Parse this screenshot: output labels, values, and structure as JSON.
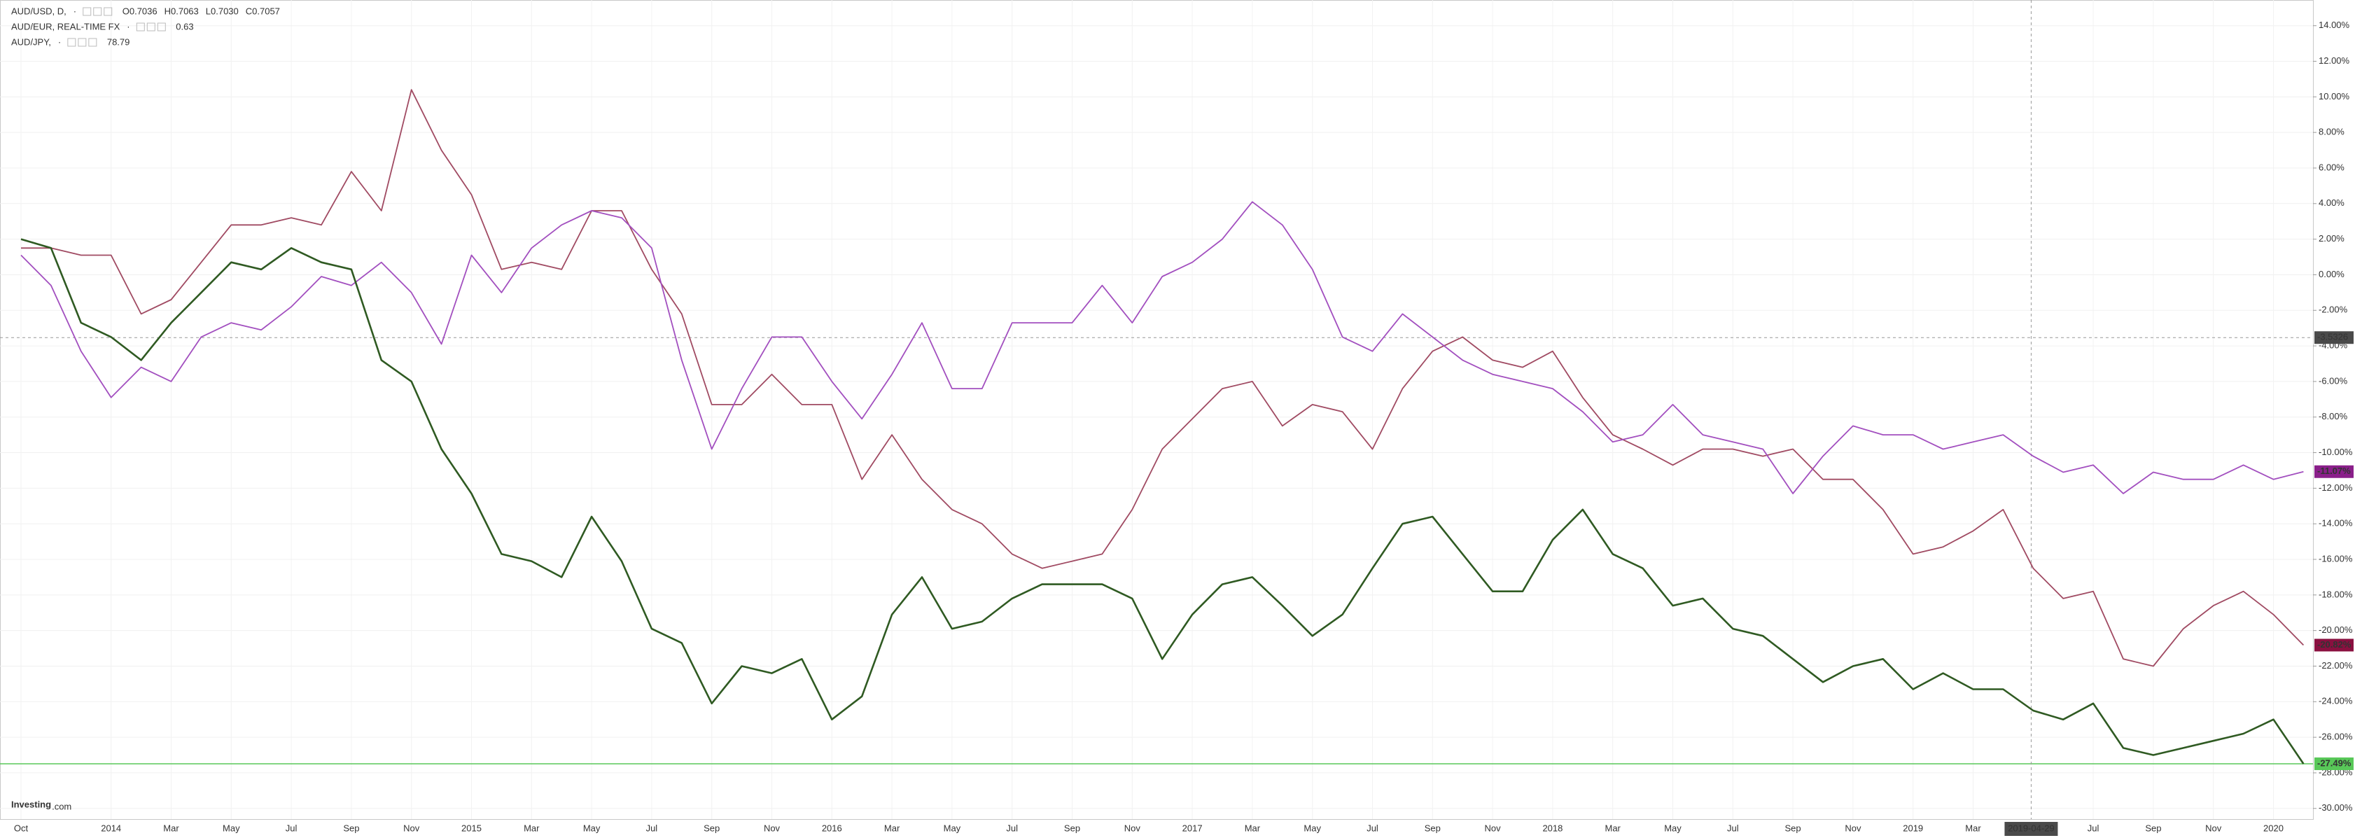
{
  "chart_data": {
    "type": "line",
    "legend": [
      {
        "name": "AUD/USD, D,",
        "detail": [
          "O0.7036",
          "H0.7063",
          "L0.7030",
          "C0.7057"
        ]
      },
      {
        "name": "AUD/EUR, REAL-TIME FX",
        "detail": [
          0.63
        ]
      },
      {
        "name": "AUD/JPY,",
        "detail": [
          78.79
        ]
      }
    ],
    "logo": {
      "main": "Investing",
      "suffix": ".com"
    },
    "categories": [
      "Oct",
      null,
      null,
      "2014",
      null,
      "Mar",
      null,
      "May",
      null,
      "Jul",
      null,
      "Sep",
      null,
      "Nov",
      null,
      "2015",
      null,
      "Mar",
      null,
      "May",
      null,
      "Jul",
      null,
      "Sep",
      null,
      "Nov",
      null,
      "2016",
      null,
      "Mar",
      null,
      "May",
      null,
      "Jul",
      null,
      "Sep",
      null,
      "Nov",
      null,
      "2017",
      null,
      "Mar",
      null,
      "May",
      null,
      "Jul",
      null,
      "Sep",
      null,
      "Nov",
      null,
      "2018",
      null,
      "Mar",
      null,
      "May",
      null,
      "Jul",
      null,
      "Sep",
      null,
      "Nov",
      null,
      "2019",
      null,
      "Mar",
      null,
      null,
      null,
      "Jul",
      null,
      "Sep",
      null,
      "Nov",
      null,
      "2020",
      null
    ],
    "series": [
      {
        "name": "AUD/USD",
        "color": "#2f5a22",
        "price_line_color": "#58c858",
        "last_label": "-27.49%",
        "values": [
          2,
          1.5,
          -2.7,
          -3.5,
          -4.8,
          -2.7,
          -1,
          0.7,
          0.3,
          1.5,
          0.7,
          0.3,
          -4.8,
          -6,
          -9.8,
          -12.3,
          -15.7,
          -16.1,
          -17,
          -13.6,
          -16.1,
          -19.9,
          -20.7,
          -24.1,
          -22,
          -22.4,
          -21.6,
          -25,
          -23.7,
          -19.1,
          -17,
          -19.9,
          -19.5,
          -18.2,
          -17.4,
          -17.4,
          -17.4,
          -18.2,
          -21.6,
          -19.1,
          -17.4,
          -17,
          -18.6,
          -20.3,
          -19.1,
          -16.5,
          -14,
          -13.6,
          -15.7,
          -17.8,
          -17.8,
          -14.9,
          -13.2,
          -15.7,
          -16.5,
          -18.6,
          -18.2,
          -19.9,
          -20.3,
          -21.6,
          -22.9,
          -22,
          -21.6,
          -23.3,
          -22.4,
          -23.3,
          -23.3,
          -24.5,
          -25,
          -24.1,
          -26.6,
          -27,
          -26.6,
          -26.2,
          -25.8,
          -25,
          -27.49
        ]
      },
      {
        "name": "AUD/EUR",
        "color": "#a24fbf",
        "label_color": "#8a1f8a",
        "last_label": "-11.07%",
        "values": [
          1.1,
          -0.6,
          -4.3,
          -6.9,
          -5.2,
          -6,
          -3.5,
          -2.7,
          -3.1,
          -1.8,
          -0.1,
          -0.6,
          0.7,
          -1,
          -3.9,
          1.1,
          -1,
          1.5,
          2.8,
          3.6,
          3.2,
          1.5,
          -4.8,
          -9.8,
          -6.4,
          -3.5,
          -3.5,
          -6,
          -8.1,
          -5.6,
          -2.7,
          -6.4,
          -6.4,
          -2.7,
          -2.7,
          -2.7,
          -0.6,
          -2.7,
          -0.1,
          0.7,
          2,
          4.1,
          2.8,
          0.3,
          -3.5,
          -4.3,
          -2.2,
          -3.5,
          -4.8,
          -5.6,
          -6,
          -6.4,
          -7.7,
          -9.4,
          -9,
          -7.3,
          -9,
          -9.4,
          -9.8,
          -12.3,
          -10.2,
          -8.5,
          -9,
          -9,
          -9.8,
          -9.4,
          -9,
          -10.2,
          -11.1,
          -10.7,
          -12.3,
          -11.1,
          -11.5,
          -11.5,
          -10.7,
          -11.5,
          -11.07
        ]
      },
      {
        "name": "AUD/JPY",
        "color": "#a04a62",
        "label_color": "#8a1040",
        "last_label": "-20.82%",
        "values": [
          1.5,
          1.5,
          1.1,
          1.1,
          -2.2,
          -1.4,
          0.7,
          2.8,
          2.8,
          3.2,
          2.8,
          5.8,
          3.6,
          10.4,
          7,
          4.5,
          0.3,
          0.7,
          0.3,
          3.6,
          3.6,
          0.3,
          -2.2,
          -7.3,
          -7.3,
          -5.6,
          -7.3,
          -7.3,
          -11.5,
          -9,
          -11.5,
          -13.2,
          -14,
          -15.7,
          -16.5,
          -16.1,
          -15.7,
          -13.2,
          -9.8,
          -8.1,
          -6.4,
          -6,
          -8.5,
          -7.3,
          -7.7,
          -9.8,
          -6.4,
          -4.3,
          -3.5,
          -4.8,
          -5.2,
          -4.3,
          -6.9,
          -9,
          -9.8,
          -10.7,
          -9.8,
          -9.8,
          -10.2,
          -9.8,
          -11.5,
          -11.5,
          -13.2,
          -15.7,
          -15.3,
          -14.4,
          -13.2,
          -16.5,
          -18.2,
          -17.8,
          -21.6,
          -22,
          -19.9,
          -18.6,
          -17.8,
          -19.1,
          -20.82
        ]
      }
    ],
    "ylim": [
      14.5,
      -30.6
    ],
    "yticks": [
      {
        "value": 14,
        "label": "14.00%"
      },
      {
        "value": 12,
        "label": "12.00%"
      },
      {
        "value": 10,
        "label": "10.00%"
      },
      {
        "value": 8,
        "label": "8.00%"
      },
      {
        "value": 6,
        "label": "6.00%"
      },
      {
        "value": 4,
        "label": "4.00%"
      },
      {
        "value": 2,
        "label": "2.00%"
      },
      {
        "value": 0,
        "label": "0.00%"
      },
      {
        "value": -2,
        "label": "-2.00%"
      },
      {
        "value": -4,
        "label": "-4.00%"
      },
      {
        "value": -6,
        "label": "-6.00%"
      },
      {
        "value": -8,
        "label": "-8.00%"
      },
      {
        "value": -10,
        "label": "-10.00%"
      },
      {
        "value": -12,
        "label": "-12.00%"
      },
      {
        "value": -14,
        "label": "-14.00%"
      },
      {
        "value": -16,
        "label": "-16.00%"
      },
      {
        "value": -18,
        "label": "-18.00%"
      },
      {
        "value": -20,
        "label": "-20.00%"
      },
      {
        "value": -22,
        "label": "-22.00%"
      },
      {
        "value": -24,
        "label": "-24.00%"
      },
      {
        "value": -26,
        "label": "-26.00%"
      },
      {
        "value": -28,
        "label": "-28.00%"
      },
      {
        "value": -30,
        "label": "-30.00%"
      }
    ],
    "grid": true,
    "crosshair": {
      "x_label": "2019-04-29",
      "y": -3.5326
    }
  }
}
